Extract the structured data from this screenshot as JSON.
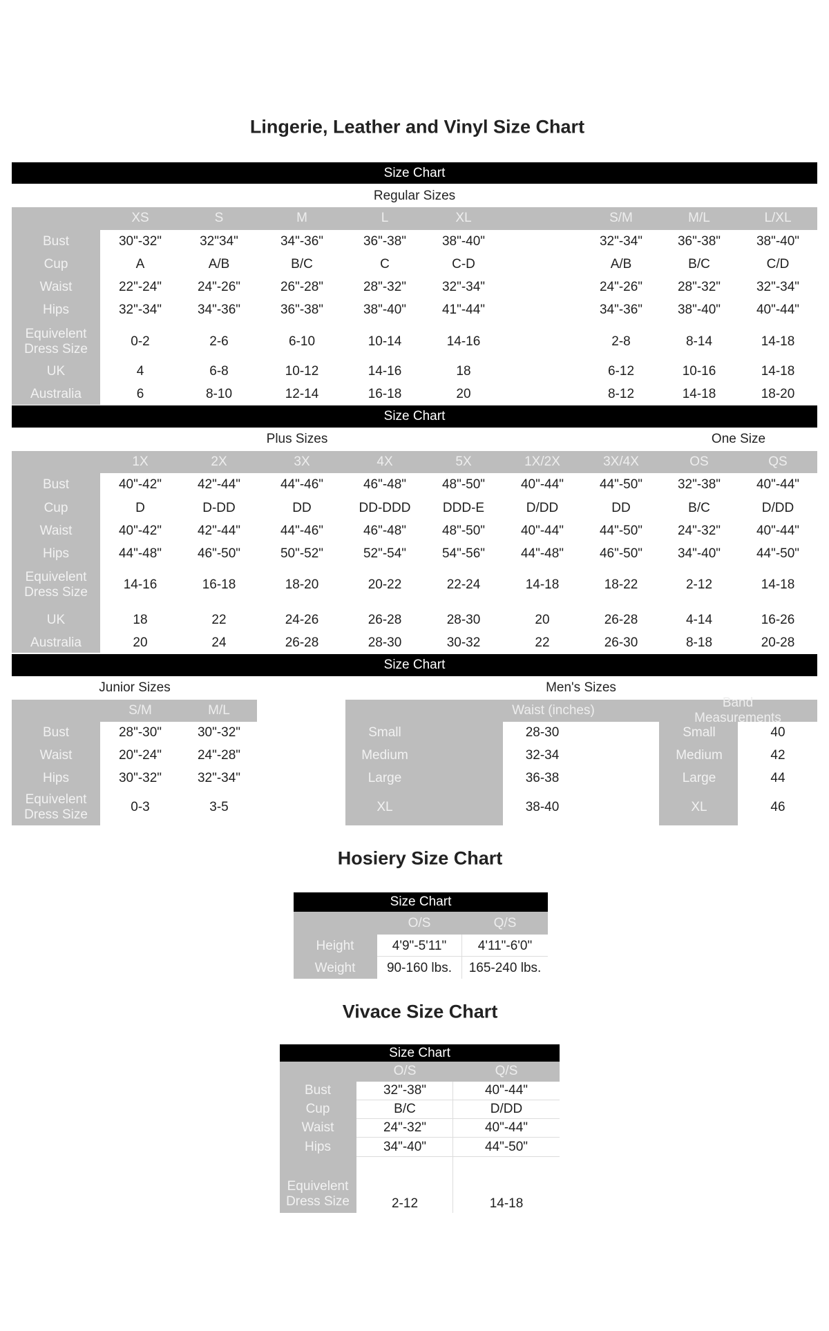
{
  "title": "Lingerie, Leather and Vinyl Size Chart",
  "bar_label": "Size Chart",
  "regular": {
    "subtitle": "Regular Sizes",
    "columns": [
      "XS",
      "S",
      "M",
      "L",
      "XL",
      "S/M",
      "M/L",
      "L/XL"
    ],
    "rows": [
      {
        "label": "Bust",
        "values": [
          "30\"-32\"",
          "32\"34\"",
          "34\"-36\"",
          "36\"-38\"",
          "38\"-40\"",
          "32\"-34\"",
          "36\"-38\"",
          "38\"-40\""
        ]
      },
      {
        "label": "Cup",
        "values": [
          "A",
          "A/B",
          "B/C",
          "C",
          "C-D",
          "A/B",
          "B/C",
          "C/D"
        ]
      },
      {
        "label": "Waist",
        "values": [
          "22\"-24\"",
          "24\"-26\"",
          "26\"-28\"",
          "28\"-32\"",
          "32\"-34\"",
          "24\"-26\"",
          "28\"-32\"",
          "32\"-34\""
        ]
      },
      {
        "label": "Hips",
        "values": [
          "32\"-34\"",
          "34\"-36\"",
          "36\"-38\"",
          "38\"-40\"",
          "41\"-44\"",
          "34\"-36\"",
          "38\"-40\"",
          "40\"-44\""
        ]
      },
      {
        "label": "Equivelent\nDress Size",
        "values": [
          "0-2",
          "2-6",
          "6-10",
          "10-14",
          "14-16",
          "2-8",
          "8-14",
          "14-18"
        ]
      },
      {
        "label": "UK",
        "values": [
          "4",
          "6-8",
          "10-12",
          "14-16",
          "18",
          "6-12",
          "10-16",
          "14-18"
        ]
      },
      {
        "label": "Australia",
        "values": [
          "6",
          "8-10",
          "12-14",
          "16-18",
          "20",
          "8-12",
          "14-18",
          "18-20"
        ]
      }
    ]
  },
  "plus": {
    "subtitle": "Plus Sizes",
    "subtitle_one_size": "One Size",
    "columns": [
      "1X",
      "2X",
      "3X",
      "4X",
      "5X",
      "1X/2X",
      "3X/4X",
      "OS",
      "QS"
    ],
    "rows": [
      {
        "label": "Bust",
        "values": [
          "40\"-42\"",
          "42\"-44\"",
          "44\"-46\"",
          "46\"-48\"",
          "48\"-50\"",
          "40\"-44\"",
          "44\"-50\"",
          "32\"-38\"",
          "40\"-44\""
        ]
      },
      {
        "label": "Cup",
        "values": [
          "D",
          "D-DD",
          "DD",
          "DD-DDD",
          "DDD-E",
          "D/DD",
          "DD",
          "B/C",
          "D/DD"
        ]
      },
      {
        "label": "Waist",
        "values": [
          "40\"-42\"",
          "42\"-44\"",
          "44\"-46\"",
          "46\"-48\"",
          "48\"-50\"",
          "40\"-44\"",
          "44\"-50\"",
          "24\"-32\"",
          "40\"-44\""
        ]
      },
      {
        "label": "Hips",
        "values": [
          "44\"-48\"",
          "46\"-50\"",
          "50\"-52\"",
          "52\"-54\"",
          "54\"-56\"",
          "44\"-48\"",
          "46\"-50\"",
          "34\"-40\"",
          "44\"-50\""
        ]
      },
      {
        "label": "Equivelent\nDress Size",
        "values": [
          "14-16",
          "16-18",
          "18-20",
          "20-22",
          "22-24",
          "14-18",
          "18-22",
          "2-12",
          "14-18"
        ]
      },
      {
        "label": "UK",
        "values": [
          "18",
          "22",
          "24-26",
          "26-28",
          "28-30",
          "20",
          "26-28",
          "4-14",
          "16-26"
        ]
      },
      {
        "label": "Australia",
        "values": [
          "20",
          "24",
          "26-28",
          "28-30",
          "30-32",
          "22",
          "26-30",
          "8-18",
          "20-28"
        ]
      }
    ]
  },
  "junior": {
    "subtitle": "Junior Sizes",
    "columns": [
      "S/M",
      "M/L"
    ],
    "rows": [
      {
        "label": "Bust",
        "values": [
          "28\"-30\"",
          "30\"-32\""
        ]
      },
      {
        "label": "Waist",
        "values": [
          "20\"-24\"",
          "24\"-28\""
        ]
      },
      {
        "label": "Hips",
        "values": [
          "30\"-32\"",
          "32\"-34\""
        ]
      },
      {
        "label": "Equivelent\nDress Size",
        "values": [
          "0-3",
          "3-5"
        ]
      }
    ]
  },
  "mens": {
    "subtitle": "Men's Sizes",
    "waist_header": "Waist (inches)",
    "band_header": "Band Measurements",
    "waist_rows": [
      {
        "label": "Small",
        "value": "28-30"
      },
      {
        "label": "Medium",
        "value": "32-34"
      },
      {
        "label": "Large",
        "value": "36-38"
      },
      {
        "label": "XL",
        "value": "38-40"
      }
    ],
    "band_rows": [
      {
        "label": "Small",
        "value": "40"
      },
      {
        "label": "Medium",
        "value": "42"
      },
      {
        "label": "Large",
        "value": "44"
      },
      {
        "label": "XL",
        "value": "46"
      }
    ]
  },
  "hosiery": {
    "title": "Hosiery Size Chart",
    "bar_label": "Size Chart",
    "columns": [
      "O/S",
      "Q/S"
    ],
    "rows": [
      {
        "label": "Height",
        "values": [
          "4'9\"-5'11\"",
          "4'11\"-6'0\""
        ]
      },
      {
        "label": "Weight",
        "values": [
          "90-160 lbs.",
          "165-240 lbs."
        ]
      }
    ]
  },
  "vivace": {
    "title": "Vivace Size Chart",
    "bar_label": "Size Chart",
    "columns": [
      "O/S",
      "Q/S"
    ],
    "rows": [
      {
        "label": "Bust",
        "values": [
          "32\"-38\"",
          "40\"-44\""
        ]
      },
      {
        "label": "Cup",
        "values": [
          "B/C",
          "D/DD"
        ]
      },
      {
        "label": "Waist",
        "values": [
          "24\"-32\"",
          "40\"-44\""
        ]
      },
      {
        "label": "Hips",
        "values": [
          "34\"-40\"",
          "44\"-50\""
        ]
      },
      {
        "label": "Equivelent\nDress Size",
        "values": [
          "2-12",
          "14-18"
        ]
      }
    ]
  }
}
